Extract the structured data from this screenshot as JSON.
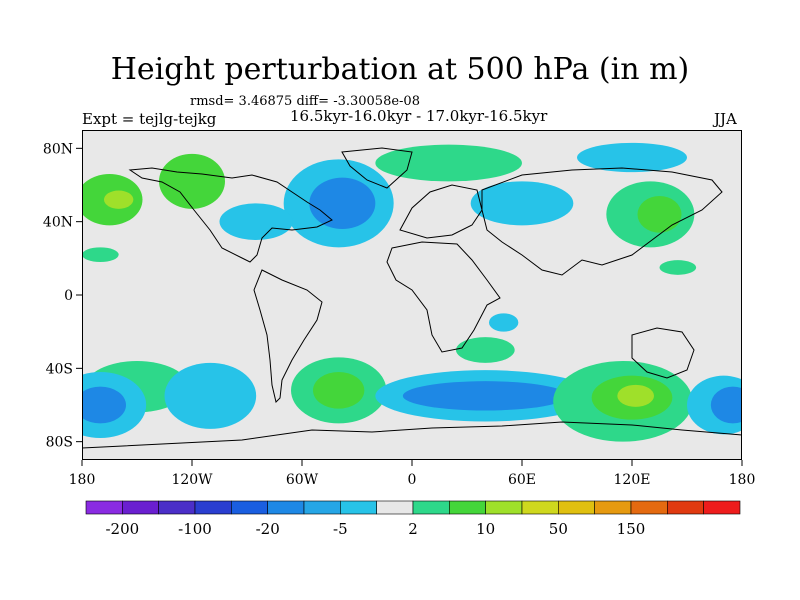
{
  "title": "Height perturbation at 500 hPa (in m)",
  "stats": "rmsd= 3.46875 diff= -3.30058e-08",
  "expt": "Expt = tejlg-tejkg",
  "subtitle": "16.5kyr-16.0kyr - 17.0kyr-16.5kyr",
  "season": "JJA",
  "map": {
    "lat_ticks": [
      "80N",
      "40N",
      "0",
      "40S",
      "80S"
    ],
    "lon_ticks": [
      "180",
      "120W",
      "60W",
      "0",
      "60E",
      "120E",
      "180"
    ],
    "lat_values": [
      80,
      40,
      0,
      -40,
      -80
    ],
    "lon_values": [
      -180,
      -120,
      -60,
      0,
      60,
      120,
      180
    ],
    "lat_range": [
      -90,
      90
    ],
    "lon_range": [
      -180,
      180
    ],
    "background_color": "#e8e8e8"
  },
  "colorbar": {
    "colors": [
      "#8a2be2",
      "#6a1fd0",
      "#4b2fc8",
      "#2a3ed0",
      "#1a5ee0",
      "#1e88e5",
      "#26a6e6",
      "#27c3e8",
      "#e8e8e8",
      "#2ed88a",
      "#44d63a",
      "#9fe02a",
      "#cfd81e",
      "#e0c010",
      "#e69a10",
      "#e46a10",
      "#e03a10",
      "#ee1c1c"
    ],
    "labels": [
      "-200",
      "-100",
      "-20",
      "-5",
      "2",
      "10",
      "50",
      "150"
    ]
  },
  "blobs": [
    {
      "lon": -165,
      "lat": 52,
      "rx": 18,
      "ry": 14,
      "color": "#44d63a"
    },
    {
      "lon": -160,
      "lat": 52,
      "rx": 8,
      "ry": 5,
      "color": "#9fe02a"
    },
    {
      "lon": -120,
      "lat": 62,
      "rx": 18,
      "ry": 15,
      "color": "#44d63a"
    },
    {
      "lon": -40,
      "lat": 50,
      "rx": 30,
      "ry": 24,
      "color": "#27c3e8"
    },
    {
      "lon": -38,
      "lat": 50,
      "rx": 18,
      "ry": 14,
      "color": "#1e88e5"
    },
    {
      "lon": -85,
      "lat": 40,
      "rx": 20,
      "ry": 10,
      "color": "#27c3e8"
    },
    {
      "lon": 60,
      "lat": 50,
      "rx": 28,
      "ry": 12,
      "color": "#27c3e8"
    },
    {
      "lon": 130,
      "lat": 44,
      "rx": 24,
      "ry": 18,
      "color": "#2ed88a"
    },
    {
      "lon": 135,
      "lat": 44,
      "rx": 12,
      "ry": 10,
      "color": "#44d63a"
    },
    {
      "lon": 20,
      "lat": 72,
      "rx": 40,
      "ry": 10,
      "color": "#2ed88a"
    },
    {
      "lon": 120,
      "lat": 75,
      "rx": 30,
      "ry": 8,
      "color": "#27c3e8"
    },
    {
      "lon": -150,
      "lat": -50,
      "rx": 28,
      "ry": 14,
      "color": "#2ed88a"
    },
    {
      "lon": -170,
      "lat": -60,
      "rx": 25,
      "ry": 18,
      "color": "#27c3e8"
    },
    {
      "lon": -170,
      "lat": -60,
      "rx": 14,
      "ry": 10,
      "color": "#1e88e5"
    },
    {
      "lon": -110,
      "lat": -55,
      "rx": 25,
      "ry": 18,
      "color": "#27c3e8"
    },
    {
      "lon": -40,
      "lat": -52,
      "rx": 26,
      "ry": 18,
      "color": "#2ed88a"
    },
    {
      "lon": -40,
      "lat": -52,
      "rx": 14,
      "ry": 10,
      "color": "#44d63a"
    },
    {
      "lon": 40,
      "lat": -55,
      "rx": 60,
      "ry": 14,
      "color": "#27c3e8"
    },
    {
      "lon": 40,
      "lat": -55,
      "rx": 45,
      "ry": 8,
      "color": "#1e88e5"
    },
    {
      "lon": 115,
      "lat": -58,
      "rx": 38,
      "ry": 22,
      "color": "#2ed88a"
    },
    {
      "lon": 120,
      "lat": -56,
      "rx": 22,
      "ry": 12,
      "color": "#44d63a"
    },
    {
      "lon": 122,
      "lat": -55,
      "rx": 10,
      "ry": 6,
      "color": "#9fe02a"
    },
    {
      "lon": 170,
      "lat": -60,
      "rx": 20,
      "ry": 16,
      "color": "#27c3e8"
    },
    {
      "lon": 175,
      "lat": -60,
      "rx": 12,
      "ry": 10,
      "color": "#1e88e5"
    },
    {
      "lon": 40,
      "lat": -30,
      "rx": 16,
      "ry": 7,
      "color": "#2ed88a"
    },
    {
      "lon": 50,
      "lat": -15,
      "rx": 8,
      "ry": 5,
      "color": "#27c3e8"
    },
    {
      "lon": 145,
      "lat": 15,
      "rx": 10,
      "ry": 4,
      "color": "#2ed88a"
    },
    {
      "lon": -170,
      "lat": 22,
      "rx": 10,
      "ry": 4,
      "color": "#2ed88a"
    }
  ]
}
